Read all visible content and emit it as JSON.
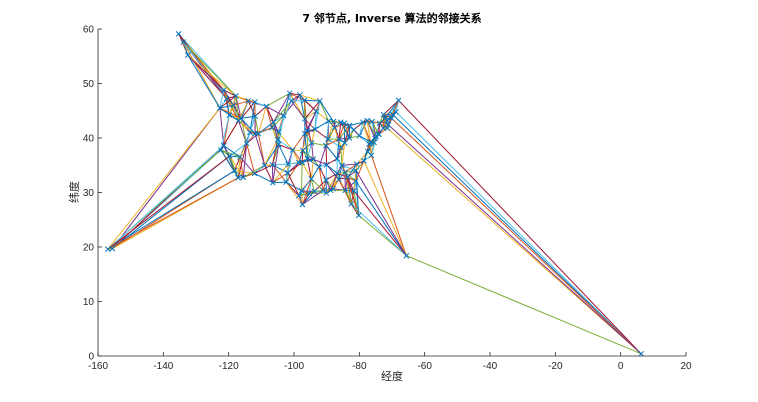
{
  "chart_data": {
    "type": "line",
    "title": "7 邻节点, Inverse 算法的邻接关系",
    "xlabel": "经度",
    "ylabel": "纬度",
    "xlim": [
      -160,
      20
    ],
    "ylim": [
      0,
      60
    ],
    "xticks": [
      -160,
      -140,
      -120,
      -100,
      -80,
      -60,
      -40,
      -20,
      0,
      20
    ],
    "yticks": [
      0,
      10,
      20,
      30,
      40,
      50,
      60
    ],
    "grid": false,
    "box": false,
    "marker": "x",
    "colors": [
      "#0072BD",
      "#D95319",
      "#EDB120",
      "#7E2F8E",
      "#77AC30",
      "#4DBEEE",
      "#A2142F"
    ],
    "points": [
      [
        -135.3,
        59.1
      ],
      [
        -133.9,
        57.6
      ],
      [
        -132.5,
        55.2
      ],
      [
        -121.5,
        48.8
      ],
      [
        -120.6,
        47.2
      ],
      [
        -118.5,
        46.0
      ],
      [
        -117.8,
        47.7
      ],
      [
        -114.0,
        46.8
      ],
      [
        -112.0,
        46.6
      ],
      [
        -111.9,
        44.0
      ],
      [
        -116.2,
        43.6
      ],
      [
        -119.8,
        44.2
      ],
      [
        -122.7,
        45.5
      ],
      [
        -117.0,
        43.2
      ],
      [
        -113.5,
        41.0
      ],
      [
        -114.5,
        39.0
      ],
      [
        -116.5,
        36.5
      ],
      [
        -118.2,
        34.0
      ],
      [
        -117.1,
        32.7
      ],
      [
        -115.5,
        32.8
      ],
      [
        -112.1,
        33.5
      ],
      [
        -106.6,
        35.1
      ],
      [
        -104.7,
        38.8
      ],
      [
        -105.0,
        39.7
      ],
      [
        -104.8,
        41.1
      ],
      [
        -106.3,
        42.9
      ],
      [
        -108.5,
        45.8
      ],
      [
        -110.9,
        40.8
      ],
      [
        -106.5,
        31.8
      ],
      [
        -102.4,
        31.9
      ],
      [
        -101.8,
        35.2
      ],
      [
        -98.5,
        35.5
      ],
      [
        -97.5,
        35.5
      ],
      [
        -95.9,
        36.2
      ],
      [
        -97.3,
        37.7
      ],
      [
        -101.3,
        48.2
      ],
      [
        -98.2,
        47.9
      ],
      [
        -96.8,
        46.9
      ],
      [
        -100.8,
        46.8
      ],
      [
        -96.7,
        43.5
      ],
      [
        -103.2,
        44.1
      ],
      [
        -95.9,
        41.3
      ],
      [
        -96.7,
        40.8
      ],
      [
        -94.6,
        39.1
      ],
      [
        -93.6,
        41.6
      ],
      [
        -93.2,
        44.9
      ],
      [
        -92.1,
        46.8
      ],
      [
        -89.4,
        43.1
      ],
      [
        -87.9,
        43.0
      ],
      [
        -87.6,
        41.9
      ],
      [
        -89.6,
        39.8
      ],
      [
        -90.2,
        38.6
      ],
      [
        -92.3,
        34.7
      ],
      [
        -94.1,
        36.1
      ],
      [
        -94.7,
        32.5
      ],
      [
        -97.7,
        30.3
      ],
      [
        -95.4,
        29.8
      ],
      [
        -98.5,
        29.4
      ],
      [
        -97.4,
        27.8
      ],
      [
        -93.8,
        30.2
      ],
      [
        -91.1,
        30.4
      ],
      [
        -90.1,
        29.9
      ],
      [
        -90.2,
        32.3
      ],
      [
        -88.0,
        30.7
      ],
      [
        -86.3,
        32.4
      ],
      [
        -86.8,
        33.5
      ],
      [
        -84.4,
        33.7
      ],
      [
        -81.1,
        32.1
      ],
      [
        -81.7,
        30.3
      ],
      [
        -82.5,
        27.9
      ],
      [
        -84.3,
        30.4
      ],
      [
        -80.2,
        25.8
      ],
      [
        -81.0,
        34.0
      ],
      [
        -80.8,
        35.2
      ],
      [
        -78.6,
        35.8
      ],
      [
        -77.4,
        37.5
      ],
      [
        -76.3,
        36.8
      ],
      [
        -77.0,
        38.9
      ],
      [
        -76.6,
        39.3
      ],
      [
        -75.2,
        39.9
      ],
      [
        -74.2,
        40.7
      ],
      [
        -74.0,
        40.7
      ],
      [
        -73.8,
        42.7
      ],
      [
        -76.1,
        43.0
      ],
      [
        -77.6,
        43.2
      ],
      [
        -78.9,
        42.9
      ],
      [
        -80.0,
        40.4
      ],
      [
        -81.7,
        41.5
      ],
      [
        -83.0,
        40.0
      ],
      [
        -84.5,
        39.1
      ],
      [
        -83.0,
        42.3
      ],
      [
        -85.7,
        42.9
      ],
      [
        -84.6,
        42.7
      ],
      [
        -86.2,
        39.8
      ],
      [
        -85.7,
        38.3
      ],
      [
        -86.8,
        36.2
      ],
      [
        -85.3,
        35.0
      ],
      [
        -90.0,
        35.1
      ],
      [
        -71.1,
        42.4
      ],
      [
        -71.4,
        41.8
      ],
      [
        -72.7,
        41.8
      ],
      [
        -72.6,
        44.3
      ],
      [
        -71.5,
        43.2
      ],
      [
        -70.3,
        43.7
      ],
      [
        -69.8,
        44.3
      ],
      [
        -68.8,
        44.8
      ],
      [
        -68.0,
        46.9
      ],
      [
        -72.2,
        43.6
      ],
      [
        -75.5,
        39.2
      ],
      [
        -74.8,
        40.2
      ],
      [
        -65.6,
        18.4
      ],
      [
        -155.6,
        19.7
      ],
      [
        -157.0,
        19.6
      ],
      [
        -119.7,
        36.7
      ],
      [
        -121.5,
        38.6
      ],
      [
        -122.4,
        37.8
      ],
      [
        -111.9,
        40.8
      ],
      [
        -88.8,
        30.4
      ],
      [
        -101.9,
        33.6
      ],
      [
        -100.4,
        37.8
      ],
      [
        -109.0,
        35.0
      ],
      [
        -106.7,
        41.9
      ],
      [
        -83.6,
        32.8
      ],
      [
        6.3,
        0.4
      ]
    ]
  }
}
